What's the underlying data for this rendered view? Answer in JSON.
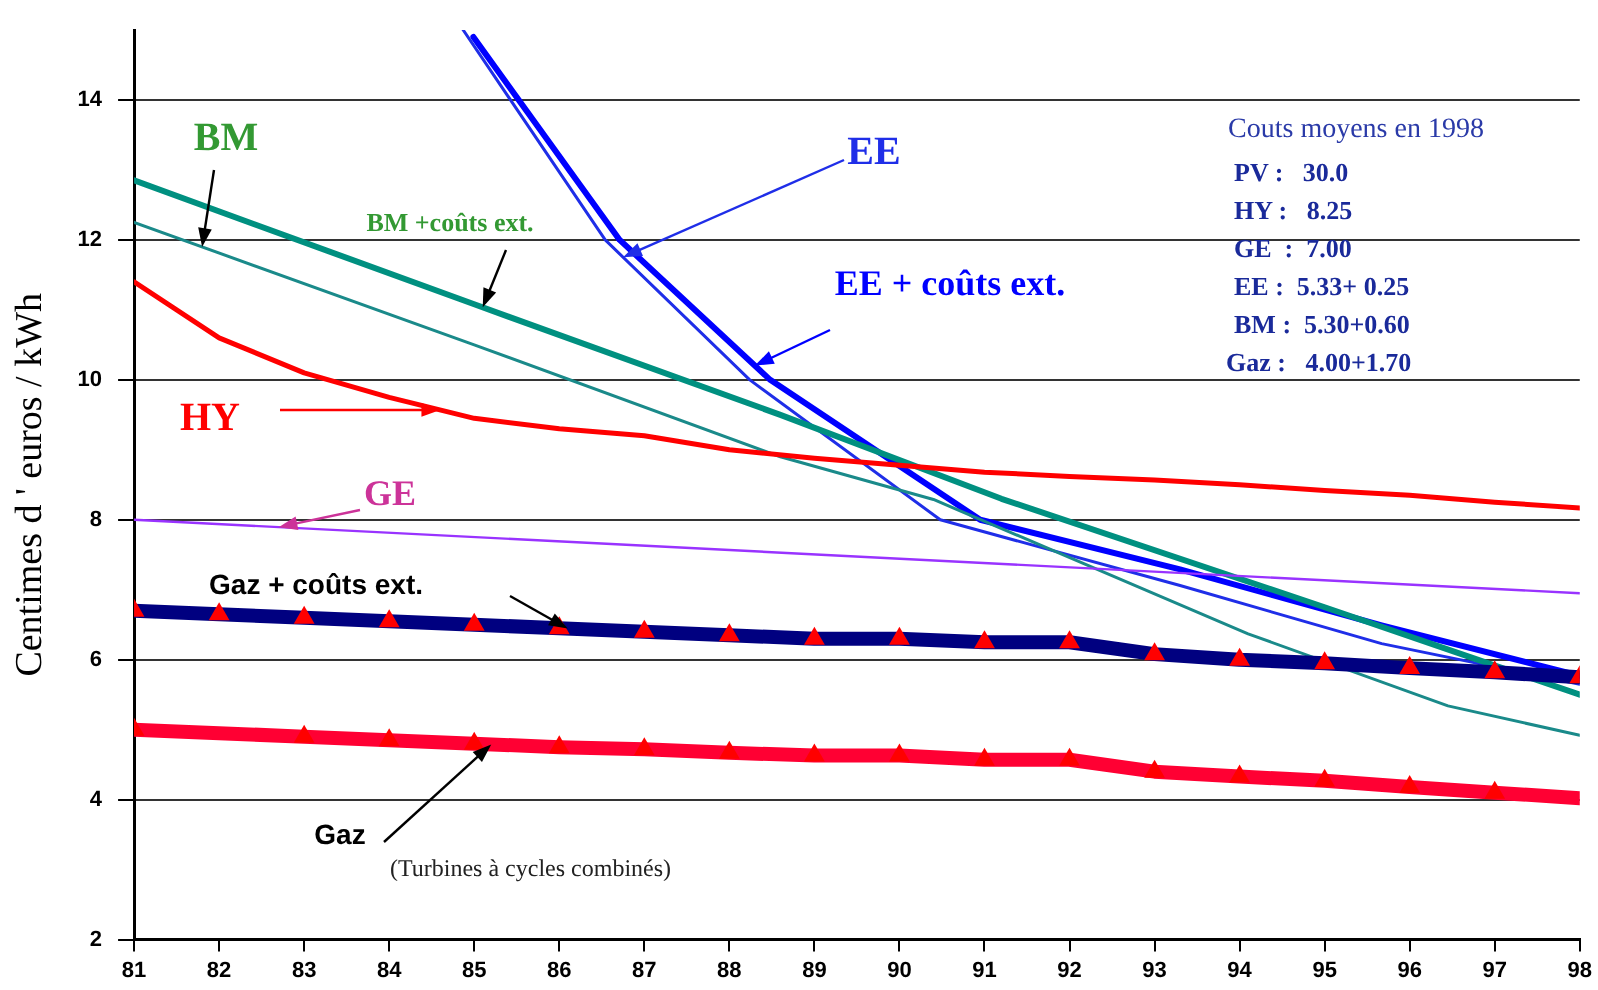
{
  "chart_data": {
    "type": "line",
    "ylabel": "Centimes d ' euros / kWh",
    "xlim": [
      81,
      98
    ],
    "xticks": [
      81,
      82,
      83,
      84,
      85,
      86,
      87,
      88,
      89,
      90,
      91,
      92,
      93,
      94,
      95,
      96,
      97,
      98
    ],
    "ylim": [
      2,
      15
    ],
    "yticks": [
      2,
      4,
      6,
      8,
      10,
      12,
      14
    ],
    "grid": "y",
    "legend": false,
    "marker": "none",
    "series": [
      {
        "name": "Gaz + coûts ext.",
        "color": "#000080",
        "x": [
          81,
          82,
          83,
          84,
          85,
          86,
          87,
          88,
          89,
          90,
          91,
          92,
          93,
          94,
          95,
          96,
          97,
          98
        ],
        "values": [
          6.7,
          6.65,
          6.6,
          6.55,
          6.5,
          6.45,
          6.4,
          6.35,
          6.3,
          6.3,
          6.25,
          6.25,
          6.08,
          6.0,
          5.95,
          5.88,
          5.82,
          5.75
        ]
      },
      {
        "name": "Gaz",
        "color": "#ff0033",
        "x": [
          81,
          82,
          83,
          84,
          85,
          86,
          87,
          88,
          89,
          90,
          91,
          92,
          93,
          94,
          95,
          96,
          97,
          98
        ],
        "values": [
          5.0,
          4.95,
          4.9,
          4.85,
          4.8,
          4.75,
          4.72,
          4.67,
          4.63,
          4.63,
          4.57,
          4.57,
          4.4,
          4.33,
          4.27,
          4.18,
          4.1,
          4.02
        ]
      },
      {
        "name": "HY",
        "color": "#ff0000",
        "x": [
          81,
          82,
          83,
          84,
          85,
          86,
          87,
          88,
          89,
          90,
          91,
          92,
          93,
          94,
          95,
          96,
          97,
          98
        ],
        "values": [
          11.4,
          10.6,
          10.1,
          9.75,
          9.45,
          9.3,
          9.2,
          9.0,
          8.88,
          8.78,
          8.68,
          8.62,
          8.57,
          8.5,
          8.42,
          8.35,
          8.25,
          8.17
        ]
      },
      {
        "name": "GE",
        "color": "#9933ff",
        "x": [
          81,
          98
        ],
        "values": [
          8.0,
          6.95
        ]
      },
      {
        "name": "BM",
        "color": "#1a8a8a",
        "x": [
          81,
          85,
          88.6,
          90.4,
          94.1,
          96.45,
          98
        ],
        "values": [
          12.25,
          10.5,
          8.9,
          8.29,
          6.37,
          5.34,
          4.92
        ]
      },
      {
        "name": "BM +coûts ext.",
        "color": "#009080",
        "x": [
          81,
          85,
          88.6,
          91.2,
          95,
          98
        ],
        "values": [
          12.85,
          11.08,
          9.5,
          8.3,
          6.75,
          5.5
        ]
      },
      {
        "name": "EE",
        "color": "#1f2ee8",
        "x": [
          84.87,
          86.54,
          88.24,
          90.48,
          93.3,
          95.67,
          98
        ],
        "values": [
          15.0,
          12.0,
          10.0,
          8.0,
          7.06,
          6.23,
          5.65
        ]
      },
      {
        "name": "EE + coûts ext.",
        "color": "#0000ff",
        "x": [
          84.99,
          86.71,
          88.48,
          90.95,
          93.3,
          95.67,
          98
        ],
        "values": [
          14.9,
          12.0,
          10.0,
          8.0,
          7.29,
          6.49,
          5.77
        ]
      },
      {
        "type": "scatter",
        "marker": "triangle",
        "color": "#ff0000",
        "x": [
          81,
          82,
          83,
          84,
          85,
          86,
          87,
          88,
          89,
          90,
          91,
          92,
          93,
          94,
          95,
          96,
          97,
          98
        ],
        "values": [
          6.7,
          6.65,
          6.6,
          6.55,
          6.5,
          6.45,
          6.4,
          6.35,
          6.3,
          6.3,
          6.25,
          6.25,
          6.08,
          6.0,
          5.95,
          5.88,
          5.82,
          5.75
        ]
      },
      {
        "type": "scatter",
        "marker": "triangle",
        "color": "#ff0000",
        "x": [
          81,
          83,
          84,
          85,
          86,
          87,
          88,
          89,
          90,
          91,
          92,
          93,
          94,
          95,
          96,
          97
        ],
        "values": [
          5.0,
          4.9,
          4.85,
          4.8,
          4.75,
          4.72,
          4.67,
          4.63,
          4.63,
          4.57,
          4.57,
          4.4,
          4.33,
          4.27,
          4.18,
          4.1
        ]
      }
    ],
    "annotations": [
      "Couts moyens en 1998",
      "PV :   30.0",
      "HY :   8.25",
      "GE  :  7.00",
      "EE :  5.33+ 0.25",
      "BM :  5.30+0.60",
      "Gaz :   4.00+1.70",
      {
        "text": "(Turbines à cycles combinés)",
        "x": 85.2,
        "y": 4.79
      }
    ]
  }
}
